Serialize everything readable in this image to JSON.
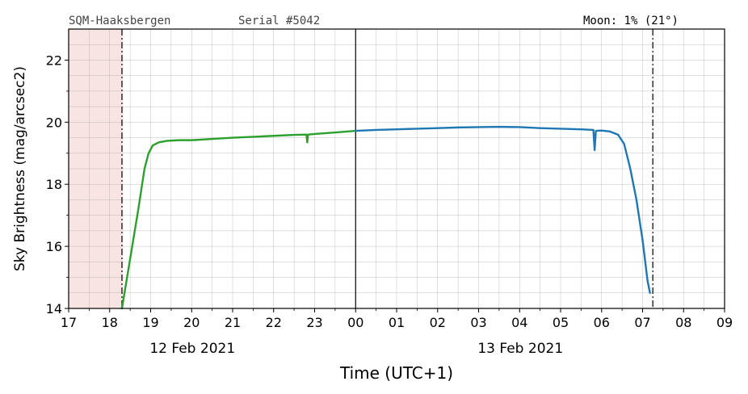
{
  "chart_data": {
    "type": "line",
    "station_label": "SQM-Haaksbergen",
    "serial_label": "Serial #5042",
    "moon_label": "Moon: 1% (21°)",
    "xlabel": "Time (UTC+1)",
    "ylabel": "Sky Brightness (mag/arcsec2)",
    "xlim": [
      17,
      33
    ],
    "ylim": [
      14,
      23
    ],
    "x_ticks": [
      17,
      18,
      19,
      20,
      21,
      22,
      23,
      24,
      25,
      26,
      27,
      28,
      29,
      30,
      31,
      32,
      33
    ],
    "x_tick_labels": [
      "17",
      "18",
      "19",
      "20",
      "21",
      "22",
      "23",
      "00",
      "01",
      "02",
      "03",
      "04",
      "05",
      "06",
      "07",
      "08",
      "09"
    ],
    "y_ticks": [
      14,
      16,
      18,
      20,
      22
    ],
    "y_tick_labels": [
      "14",
      "16",
      "18",
      "20",
      "22"
    ],
    "date_labels": [
      {
        "x": 20,
        "text": "12 Feb 2021"
      },
      {
        "x": 28,
        "text": "13 Feb 2021"
      }
    ],
    "grid": true,
    "twilight_shade": {
      "x_start": 17,
      "x_end": 18.33,
      "color": "#f9e4e4"
    },
    "twilight_lines": [
      18.3,
      31.25
    ],
    "midnight_line": 24,
    "series": [
      {
        "color": "#2ca02c",
        "points": [
          [
            18.3,
            14.0
          ],
          [
            18.5,
            15.6
          ],
          [
            18.7,
            17.2
          ],
          [
            18.85,
            18.5
          ],
          [
            18.95,
            19.0
          ],
          [
            19.05,
            19.25
          ],
          [
            19.2,
            19.35
          ],
          [
            19.4,
            19.4
          ],
          [
            19.7,
            19.42
          ],
          [
            20.0,
            19.42
          ],
          [
            20.5,
            19.46
          ],
          [
            21.0,
            19.5
          ],
          [
            21.5,
            19.53
          ],
          [
            22.0,
            19.56
          ],
          [
            22.5,
            19.59
          ],
          [
            22.8,
            19.6
          ],
          [
            22.82,
            19.35
          ],
          [
            22.84,
            19.6
          ],
          [
            23.0,
            19.62
          ],
          [
            23.5,
            19.67
          ],
          [
            24.0,
            19.72
          ]
        ]
      },
      {
        "color": "#1f77b4",
        "points": [
          [
            24.0,
            19.72
          ],
          [
            24.5,
            19.75
          ],
          [
            25.0,
            19.77
          ],
          [
            25.5,
            19.79
          ],
          [
            26.0,
            19.81
          ],
          [
            26.5,
            19.83
          ],
          [
            27.0,
            19.84
          ],
          [
            27.5,
            19.85
          ],
          [
            28.0,
            19.84
          ],
          [
            28.5,
            19.81
          ],
          [
            29.0,
            19.79
          ],
          [
            29.5,
            19.77
          ],
          [
            29.8,
            19.75
          ],
          [
            29.83,
            19.1
          ],
          [
            29.86,
            19.72
          ],
          [
            30.0,
            19.73
          ],
          [
            30.2,
            19.7
          ],
          [
            30.4,
            19.6
          ],
          [
            30.55,
            19.3
          ],
          [
            30.7,
            18.5
          ],
          [
            30.85,
            17.5
          ],
          [
            31.0,
            16.2
          ],
          [
            31.12,
            14.9
          ],
          [
            31.18,
            14.5
          ]
        ]
      }
    ]
  }
}
